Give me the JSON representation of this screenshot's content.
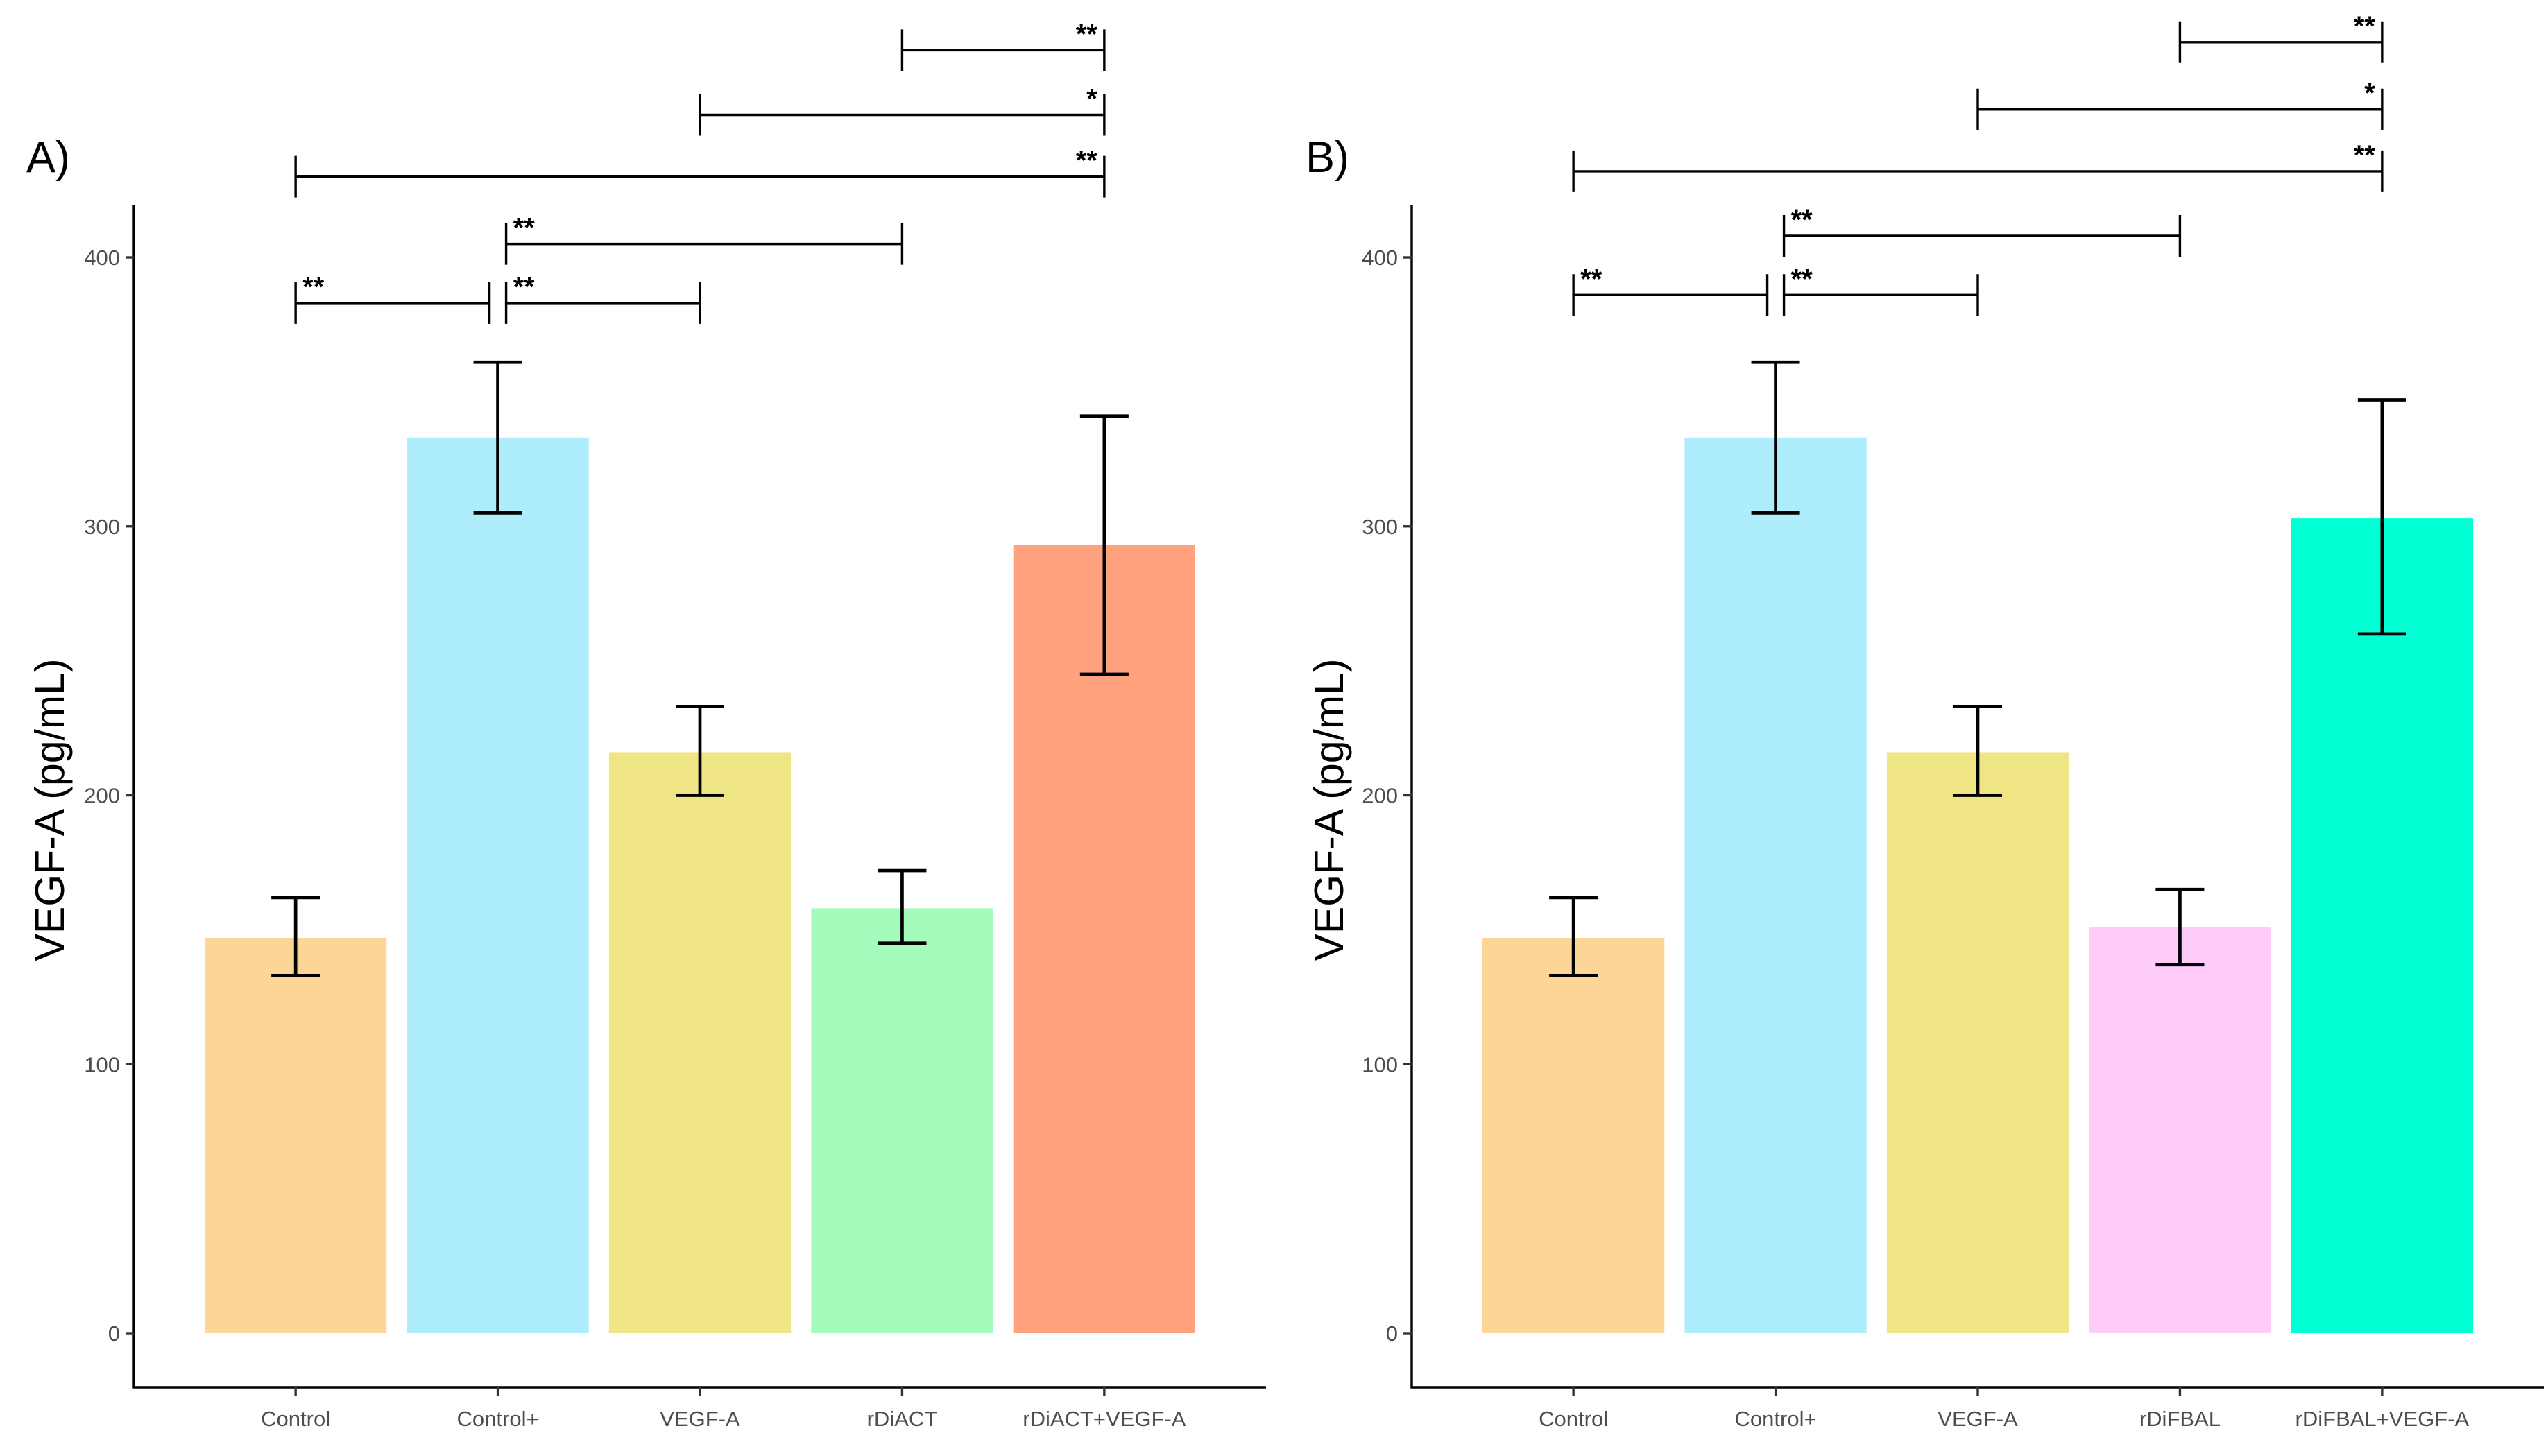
{
  "chart_data": [
    {
      "panel_label": "A)",
      "type": "bar",
      "ylabel": "VEGF-A (pg/mL)",
      "xlabel": "",
      "ylim": [
        -15,
        420
      ],
      "yticks": [
        0,
        100,
        200,
        300,
        400
      ],
      "grid": false,
      "categories": [
        "Control",
        "Control+",
        "VEGF-A",
        "rDiACT",
        "rDiACT+VEGF-A"
      ],
      "values": [
        147,
        333,
        216,
        158,
        293
      ],
      "error_low": [
        133,
        305,
        200,
        145,
        245
      ],
      "error_high": [
        162,
        361,
        233,
        172,
        341
      ],
      "colors": [
        "#FDD596",
        "#ADEDFC",
        "#F0E584",
        "#A3FCBB",
        "#FFA27D"
      ],
      "comparisons": [
        {
          "from": 0,
          "to": 1,
          "level": 383,
          "label": "**"
        },
        {
          "from": 1,
          "to": 2,
          "level": 383,
          "label": "**"
        },
        {
          "from": 1,
          "to": 3,
          "level": 405,
          "label": "**"
        },
        {
          "from": 0,
          "to": 4,
          "level": 430,
          "label": "**"
        },
        {
          "from": 2,
          "to": 4,
          "level": 453,
          "label": "*"
        },
        {
          "from": 3,
          "to": 4,
          "level": 477,
          "label": "**"
        }
      ]
    },
    {
      "panel_label": "B)",
      "type": "bar",
      "ylabel": "VEGF-A (pg/mL)",
      "xlabel": "",
      "ylim": [
        -15,
        420
      ],
      "yticks": [
        0,
        100,
        200,
        300,
        400
      ],
      "grid": false,
      "categories": [
        "Control",
        "Control+",
        "VEGF-A",
        "rDiFBAL",
        "rDiFBAL+VEGF-A"
      ],
      "values": [
        147,
        333,
        216,
        151,
        303
      ],
      "error_low": [
        133,
        305,
        200,
        137,
        260
      ],
      "error_high": [
        162,
        361,
        233,
        165,
        347
      ],
      "colors": [
        "#FDD596",
        "#ADEDFC",
        "#F0E584",
        "#FFCCFA",
        "#00FFD2"
      ],
      "comparisons": [
        {
          "from": 0,
          "to": 1,
          "level": 386,
          "label": "**"
        },
        {
          "from": 1,
          "to": 2,
          "level": 386,
          "label": "**"
        },
        {
          "from": 1,
          "to": 3,
          "level": 408,
          "label": "**"
        },
        {
          "from": 0,
          "to": 4,
          "level": 432,
          "label": "**"
        },
        {
          "from": 2,
          "to": 4,
          "level": 455,
          "label": "*"
        },
        {
          "from": 3,
          "to": 4,
          "level": 480,
          "label": "**"
        }
      ]
    }
  ]
}
